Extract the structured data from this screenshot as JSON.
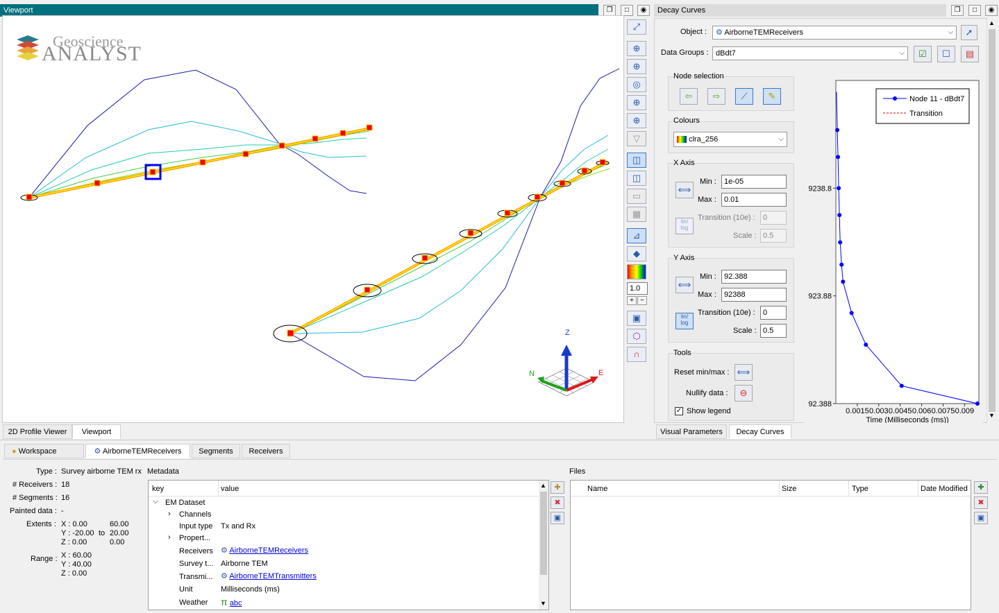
{
  "viewport": {
    "title": "Viewport",
    "logo_line1": "Geoscience",
    "logo_line2": "ANALYST",
    "zoom_value": "1.0",
    "axis_labels": {
      "z": "Z",
      "n": "N",
      "e": "E"
    }
  },
  "decay": {
    "title": "Decay Curves",
    "object_label": "Object :",
    "object_value": "AirborneTEMReceivers",
    "datagroups_label": "Data Groups :",
    "datagroups_value": "dBdt7",
    "node_selection_label": "Node selection",
    "colours_label": "Colours",
    "colours_value": "clra_256",
    "xaxis_label": "X Axis",
    "yaxis_label": "Y Axis",
    "min_label": "Min :",
    "max_label": "Max :",
    "transition_label": "Transition (10e) :",
    "scale_label": "Scale :",
    "x_min": "1e-05",
    "x_max": "0.01",
    "x_transition": "0",
    "x_scale": "0.5",
    "y_min": "92.388",
    "y_max": "92388",
    "y_transition": "0",
    "y_scale": "0.5",
    "linlog": "lin/ log",
    "tools_label": "Tools",
    "reset_label": "Reset min/max :",
    "nullify_label": "Nullify data :",
    "show_legend_label": "Show legend",
    "show_legend_checked": true
  },
  "chart_data": {
    "type": "line",
    "title": "",
    "xlabel": "Time (Milliseconds (ms))",
    "ylabel": "",
    "x_tick_labels": [
      "0.0015",
      "0.003",
      "0.0045",
      "0.006",
      "0.0075",
      "0.009"
    ],
    "y_tick_labels": [
      "9238.8",
      "923.88",
      "92.388"
    ],
    "xlim": [
      0.0,
      0.01
    ],
    "ylim": [
      92.388,
      92388
    ],
    "log_y": true,
    "legend": [
      "Node 11 - dBdt7",
      "Transition"
    ],
    "legend_placement": "top-right",
    "series": [
      {
        "name": "Node 11 - dBdt7",
        "x": [
          5e-05,
          0.0001,
          0.00015,
          0.0002,
          0.00025,
          0.0003,
          0.0004,
          0.0005,
          0.0011,
          0.0021,
          0.0046,
          0.0099
        ],
        "y": [
          72000,
          32000,
          18000,
          9238.8,
          5200,
          2900,
          1800,
          1250,
          640,
          325,
          135,
          92.388
        ]
      }
    ],
    "grid": false,
    "colors": {
      "series": "#0000ff",
      "transition": "#cc0000"
    }
  },
  "bottom_tabs_left": [
    "2D Profile Viewer",
    "Viewport"
  ],
  "bottom_tabs_right": [
    "Visual Parameters",
    "Decay Curves"
  ],
  "workspace_tabs": [
    "Workspace",
    "AirborneTEMReceivers",
    "Segments",
    "Receivers"
  ],
  "properties": {
    "type_label": "Type :",
    "type_value": "Survey airborne TEM rx",
    "receivers_label": "# Receivers :",
    "receivers_value": "18",
    "segments_label": "# Segments :",
    "segments_value": "16",
    "painted_label": "Painted data :",
    "painted_value": "-",
    "extents_label": "Extents :",
    "ext_x": "X : 0.00",
    "ext_x2": "60.00",
    "ext_y": "Y : -20.00",
    "ext_to": "to",
    "ext_y2": "20.00",
    "ext_z": "Z : 0.00",
    "ext_z2": "0.00",
    "range_label": "Range :",
    "range_x": "X : 60.00",
    "range_y": "Y : 40.00",
    "range_z": "Z : 0.00"
  },
  "metadata": {
    "label": "Metadata",
    "col_key": "key",
    "col_value": "value",
    "rows": [
      {
        "key": "EM Dataset",
        "value": ""
      },
      {
        "key": "Channels",
        "value": ""
      },
      {
        "key": "Input type",
        "value": "Tx and Rx"
      },
      {
        "key": "Propert...",
        "value": ""
      },
      {
        "key": "Receivers",
        "value": "AirborneTEMReceivers"
      },
      {
        "key": "Survey t...",
        "value": "Airborne TEM"
      },
      {
        "key": "Transmi...",
        "value": "AirborneTEMTransmitters"
      },
      {
        "key": "Unit",
        "value": "Milliseconds (ms)"
      },
      {
        "key": "Weather",
        "value": "abc"
      }
    ]
  },
  "files": {
    "label": "Files",
    "columns": [
      "Name",
      "Size",
      "Type",
      "Date Modified"
    ]
  }
}
